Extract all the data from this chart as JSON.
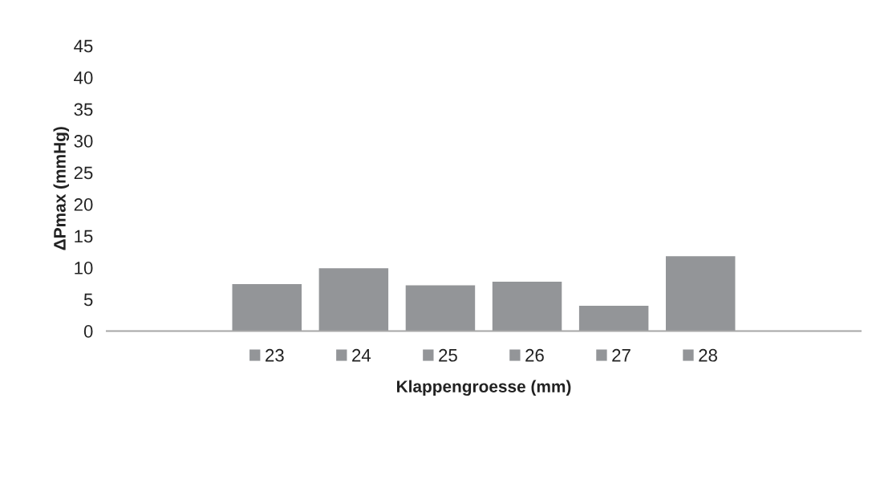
{
  "chart_data": {
    "type": "bar",
    "xlabel": "Klappengroesse (mm)",
    "ylabel": "ΔPmax (mmHg)",
    "categories": [
      null
    ],
    "series": [
      {
        "name": "23",
        "color": "#939598",
        "values": [
          7.4
        ]
      },
      {
        "name": "24",
        "color": "#939598",
        "values": [
          9.9
        ]
      },
      {
        "name": "25",
        "color": "#939598",
        "values": [
          7.2
        ]
      },
      {
        "name": "26",
        "color": "#939598",
        "values": [
          7.8
        ]
      },
      {
        "name": "27",
        "color": "#939598",
        "values": [
          4.0
        ]
      },
      {
        "name": "28",
        "color": "#939598",
        "values": [
          11.8
        ]
      }
    ],
    "ylim": [
      0,
      45
    ],
    "yticks": [
      0,
      5,
      10,
      15,
      20,
      25,
      30,
      35,
      40,
      45
    ],
    "legend": "bottom",
    "tick_labels": "y"
  }
}
